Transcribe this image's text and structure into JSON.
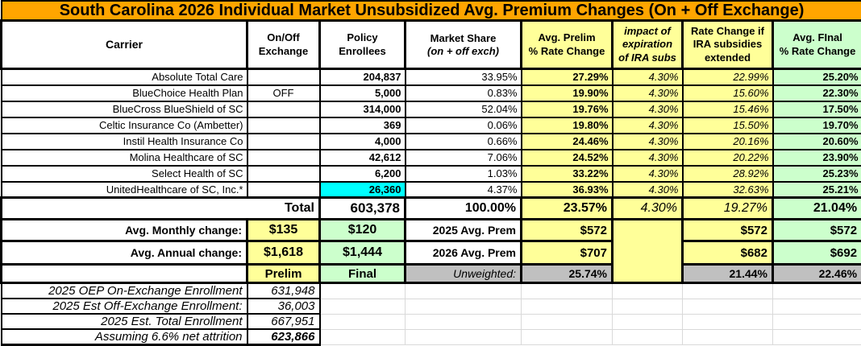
{
  "title": "South Carolina 2026 Individual Market Unsubsidized Avg. Premium Changes (On + Off Exchange)",
  "colors": {
    "title_bar": "#FFA500",
    "highlight_yellow": "#FFFF99",
    "highlight_green": "#CCFFCC",
    "highlight_cyan": "#00FFFF",
    "unweighted_gray": "#C0C0C0"
  },
  "columns": [
    {
      "id": "carrier",
      "label": "Carrier"
    },
    {
      "id": "on_off",
      "label": "On/Off\nExchange"
    },
    {
      "id": "enrollees",
      "label": "Policy\nEnrollees"
    },
    {
      "id": "market_share",
      "label": "Market Share",
      "sub": "(on + off exch)"
    },
    {
      "id": "prelim",
      "label": "Avg. Prelim\n% Rate Change"
    },
    {
      "id": "ira_impact",
      "label": "impact of\nexpiration\nof IRA subs"
    },
    {
      "id": "ira_extended",
      "label": "Rate Change if\nIRA subsidies\nextended"
    },
    {
      "id": "final",
      "label": "Avg. FInal\n% Rate Change"
    }
  ],
  "carriers": [
    {
      "name": "Absolute Total Care",
      "on_off": "",
      "enrollees": "204,837",
      "market_share": "33.95%",
      "prelim": "27.29%",
      "ira_impact": "4.30%",
      "ira_extended": "22.99%",
      "final": "25.20%",
      "highlight": false
    },
    {
      "name": "BlueChoice Health Plan",
      "on_off": "OFF",
      "enrollees": "5,000",
      "market_share": "0.83%",
      "prelim": "19.90%",
      "ira_impact": "4.30%",
      "ira_extended": "15.60%",
      "final": "22.30%",
      "highlight": false
    },
    {
      "name": "BlueCross BlueShield of SC",
      "on_off": "",
      "enrollees": "314,000",
      "market_share": "52.04%",
      "prelim": "19.76%",
      "ira_impact": "4.30%",
      "ira_extended": "15.46%",
      "final": "17.50%",
      "highlight": false
    },
    {
      "name": "Celtic Insurance Co (Ambetter)",
      "on_off": "",
      "enrollees": "369",
      "market_share": "0.06%",
      "prelim": "19.80%",
      "ira_impact": "4.30%",
      "ira_extended": "15.50%",
      "final": "19.70%",
      "highlight": false
    },
    {
      "name": "Instil Health Insurance Co",
      "on_off": "",
      "enrollees": "4,000",
      "market_share": "0.66%",
      "prelim": "24.46%",
      "ira_impact": "4.30%",
      "ira_extended": "20.16%",
      "final": "20.60%",
      "highlight": false
    },
    {
      "name": "Molina Healthcare of SC",
      "on_off": "",
      "enrollees": "42,612",
      "market_share": "7.06%",
      "prelim": "24.52%",
      "ira_impact": "4.30%",
      "ira_extended": "20.22%",
      "final": "23.90%",
      "highlight": false
    },
    {
      "name": "Select Health of SC",
      "on_off": "",
      "enrollees": "6,200",
      "market_share": "1.03%",
      "prelim": "33.22%",
      "ira_impact": "4.30%",
      "ira_extended": "28.92%",
      "final": "25.23%",
      "highlight": false
    },
    {
      "name": "UnitedHealthcare of SC, Inc.*",
      "on_off": "",
      "enrollees": "26,360",
      "market_share": "4.37%",
      "prelim": "36.93%",
      "ira_impact": "4.30%",
      "ira_extended": "32.63%",
      "final": "25.21%",
      "highlight": true
    }
  ],
  "total": {
    "label": "Total",
    "enrollees": "603,378",
    "market_share": "100.00%",
    "prelim": "23.57%",
    "ira_impact": "4.30%",
    "ira_extended": "19.27%",
    "final": "21.04%"
  },
  "summary": {
    "monthly": {
      "label": "Avg. Monthly change:",
      "prelim_amount": "$135",
      "final_amount": "$120",
      "prem_label": "2025 Avg. Prem",
      "prelim_prem": "$572",
      "ira_prem": "$572",
      "final_prem": "$572"
    },
    "annual": {
      "label": "Avg. Annual change:",
      "prelim_amount": "$1,618",
      "final_amount": "$1,444",
      "prem_label": "2026 Avg. Prem",
      "prelim_prem": "$707",
      "ira_prem": "$682",
      "final_prem": "$692"
    },
    "labels_row": {
      "prelim": "Prelim",
      "final": "Final",
      "unweighted_label": "Unweighted:",
      "prelim_pct": "25.74%",
      "ira_pct": "21.44%",
      "final_pct": "22.46%"
    }
  },
  "footnotes": [
    {
      "label": "2025 OEP On-Exchange Enrollment",
      "value": "631,948",
      "bold": false
    },
    {
      "label": "2025 Est Off-Exchange Enrollment:",
      "value": "36,003",
      "bold": false
    },
    {
      "label": "2025 Est. Total Enrollment",
      "value": "667,951",
      "bold": false
    },
    {
      "label": "Assuming 6.6% net attrition",
      "value": "623,866",
      "bold": true
    }
  ],
  "chart_data": {
    "type": "table",
    "title": "South Carolina 2026 Individual Market Unsubsidized Avg. Premium Changes (On + Off Exchange)",
    "columns": [
      "Carrier",
      "On/Off Exchange",
      "Policy Enrollees",
      "Market Share (on + off exch)",
      "Avg. Prelim % Rate Change",
      "impact of expiration of IRA subs",
      "Rate Change if IRA subsidies extended",
      "Avg. FInal % Rate Change"
    ],
    "rows": [
      [
        "Absolute Total Care",
        "",
        204837,
        33.95,
        27.29,
        4.3,
        22.99,
        25.2
      ],
      [
        "BlueChoice Health Plan",
        "OFF",
        5000,
        0.83,
        19.9,
        4.3,
        15.6,
        22.3
      ],
      [
        "BlueCross BlueShield of SC",
        "",
        314000,
        52.04,
        19.76,
        4.3,
        15.46,
        17.5
      ],
      [
        "Celtic Insurance Co (Ambetter)",
        "",
        369,
        0.06,
        19.8,
        4.3,
        15.5,
        19.7
      ],
      [
        "Instil Health Insurance Co",
        "",
        4000,
        0.66,
        24.46,
        4.3,
        20.16,
        20.6
      ],
      [
        "Molina Healthcare of SC",
        "",
        42612,
        7.06,
        24.52,
        4.3,
        20.22,
        23.9
      ],
      [
        "Select Health of SC",
        "",
        6200,
        1.03,
        33.22,
        4.3,
        28.92,
        25.23
      ],
      [
        "UnitedHealthcare of SC, Inc.*",
        "",
        26360,
        4.37,
        36.93,
        4.3,
        32.63,
        25.21
      ]
    ],
    "total_row": [
      "Total",
      "",
      603378,
      100.0,
      23.57,
      4.3,
      19.27,
      21.04
    ],
    "avg_monthly_change": {
      "prelim": 135,
      "final": 120
    },
    "avg_annual_change": {
      "prelim": 1618,
      "final": 1444
    },
    "avg_premium_2025": {
      "prelim": 572,
      "ira_extended": 572,
      "final": 572
    },
    "avg_premium_2026": {
      "prelim": 707,
      "ira_extended": 682,
      "final": 692
    },
    "unweighted": {
      "prelim_pct": 25.74,
      "ira_extended_pct": 21.44,
      "final_pct": 22.46
    },
    "enrollment_notes": {
      "oep_on_exchange_2025": 631948,
      "est_off_exchange_2025": 36003,
      "est_total_2025": 667951,
      "assuming_6_6_net_attrition": 623866
    }
  }
}
